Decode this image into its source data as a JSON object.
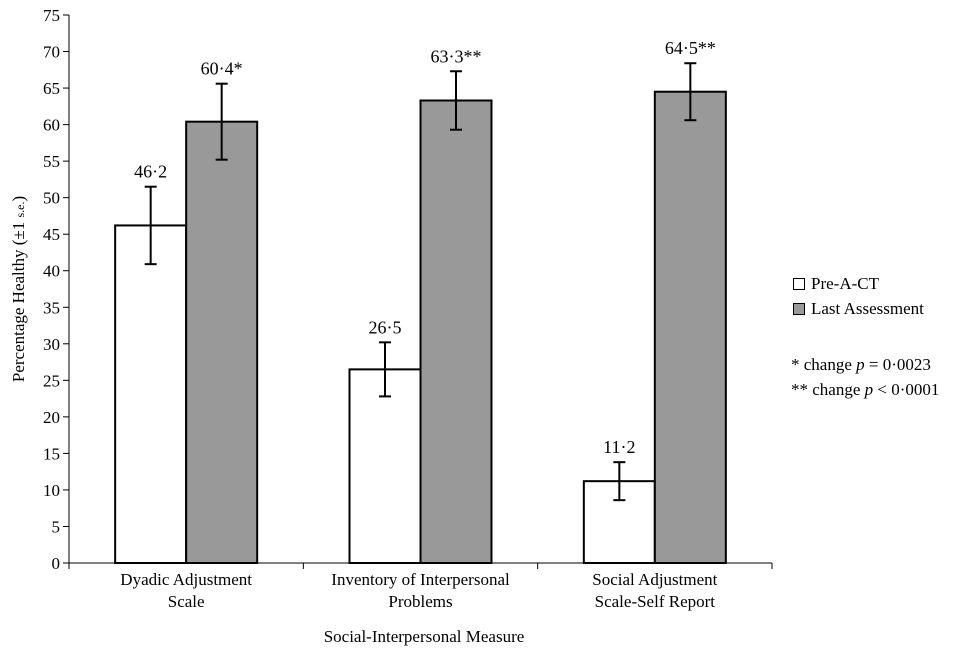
{
  "chart_data": {
    "type": "bar",
    "categories": [
      [
        "Dyadic Adjustment",
        "Scale"
      ],
      [
        "Inventory of Interpersonal",
        "Problems"
      ],
      [
        "Social Adjustment",
        "Scale-Self Report"
      ]
    ],
    "series": [
      {
        "name": "Pre-A-CT",
        "color": "#ffffff",
        "values": [
          46.2,
          26.5,
          11.2
        ],
        "labels": [
          "46·2",
          "26·5",
          "11·2"
        ],
        "error": [
          5.3,
          3.7,
          2.6
        ]
      },
      {
        "name": "Last Assessment",
        "color": "#999999",
        "values": [
          60.4,
          63.3,
          64.5
        ],
        "labels": [
          "60·4*",
          "63·3**",
          "64·5**"
        ],
        "error": [
          5.2,
          4.0,
          3.9
        ]
      }
    ],
    "xlabel": "Social-Interpersonal Measure",
    "ylabel_main": "Percentage Healthy (±1 ",
    "ylabel_se": "s.e.",
    "ylabel_end": ")",
    "ylim": [
      0,
      75
    ],
    "ytick_step": 5,
    "grid": false,
    "legend_position": "right",
    "notes": [
      {
        "prefix": "* change ",
        "p": "p",
        "suffix": " = 0·0023"
      },
      {
        "prefix": "** change ",
        "p": "p",
        "suffix": " < 0·0001"
      }
    ]
  }
}
